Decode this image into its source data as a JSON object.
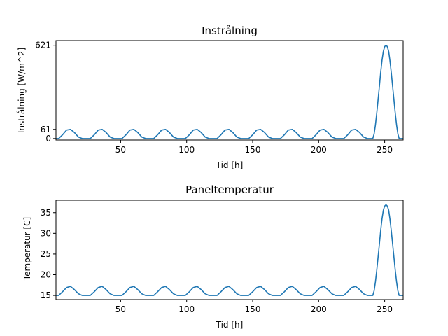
{
  "chart_data": [
    {
      "type": "line",
      "title": "Instrålning",
      "xlabel": "Tid [h]",
      "ylabel": "Instrålning [W/m^2]",
      "xlim": [
        1,
        264
      ],
      "ylim": [
        -10,
        652
      ],
      "xticks": [
        50,
        100,
        150,
        200,
        250
      ],
      "yticks": [
        0,
        61,
        621
      ],
      "grid": false,
      "series": [
        {
          "color": "#1f77b4",
          "x": [
            1,
            3,
            6,
            9,
            12,
            15,
            18,
            21,
            24,
            27,
            30,
            33,
            36,
            39,
            42,
            45,
            48,
            51,
            54,
            57,
            60,
            63,
            66,
            69,
            72,
            75,
            78,
            81,
            84,
            87,
            90,
            93,
            96,
            99,
            102,
            105,
            108,
            111,
            114,
            117,
            120,
            123,
            126,
            129,
            132,
            135,
            138,
            141,
            144,
            147,
            150,
            153,
            156,
            159,
            162,
            165,
            168,
            171,
            174,
            177,
            180,
            183,
            186,
            189,
            192,
            195,
            198,
            201,
            204,
            207,
            210,
            213,
            216,
            219,
            222,
            225,
            228,
            231,
            234,
            237,
            240,
            241,
            242,
            243,
            244,
            245,
            246,
            247,
            248,
            249,
            250,
            251,
            252,
            253,
            254,
            255,
            256,
            257,
            258,
            259,
            260,
            261,
            262,
            263,
            264
          ],
          "y": [
            0,
            0,
            25,
            56,
            61,
            40,
            10,
            0,
            0,
            0,
            25,
            56,
            61,
            40,
            10,
            0,
            0,
            0,
            25,
            56,
            61,
            40,
            10,
            0,
            0,
            0,
            25,
            56,
            61,
            40,
            10,
            0,
            0,
            0,
            25,
            56,
            61,
            40,
            10,
            0,
            0,
            0,
            25,
            56,
            61,
            40,
            10,
            0,
            0,
            0,
            25,
            56,
            61,
            40,
            10,
            0,
            0,
            0,
            25,
            56,
            61,
            40,
            10,
            0,
            0,
            0,
            25,
            56,
            61,
            40,
            10,
            0,
            0,
            0,
            25,
            56,
            61,
            40,
            10,
            0,
            0,
            0,
            30,
            90,
            170,
            260,
            350,
            440,
            520,
            580,
            612,
            621,
            612,
            580,
            520,
            440,
            350,
            260,
            170,
            90,
            30,
            0,
            0,
            0,
            0
          ]
        }
      ]
    },
    {
      "type": "line",
      "title": "Paneltemperatur",
      "xlabel": "Tid [h]",
      "ylabel": "Temperatur [C]",
      "xlim": [
        1,
        264
      ],
      "ylim": [
        14,
        38
      ],
      "xticks": [
        50,
        100,
        150,
        200,
        250
      ],
      "yticks": [
        15,
        20,
        25,
        30,
        35
      ],
      "grid": false,
      "series": [
        {
          "color": "#1f77b4",
          "x": [
            1,
            3,
            6,
            9,
            12,
            15,
            18,
            21,
            24,
            27,
            30,
            33,
            36,
            39,
            42,
            45,
            48,
            51,
            54,
            57,
            60,
            63,
            66,
            69,
            72,
            75,
            78,
            81,
            84,
            87,
            90,
            93,
            96,
            99,
            102,
            105,
            108,
            111,
            114,
            117,
            120,
            123,
            126,
            129,
            132,
            135,
            138,
            141,
            144,
            147,
            150,
            153,
            156,
            159,
            162,
            165,
            168,
            171,
            174,
            177,
            180,
            183,
            186,
            189,
            192,
            195,
            198,
            201,
            204,
            207,
            210,
            213,
            216,
            219,
            222,
            225,
            228,
            231,
            234,
            237,
            240,
            241,
            242,
            243,
            244,
            245,
            246,
            247,
            248,
            249,
            250,
            251,
            252,
            253,
            254,
            255,
            256,
            257,
            258,
            259,
            260,
            261,
            262,
            263,
            264
          ],
          "y": [
            15,
            15,
            15.9,
            16.9,
            17.2,
            16.4,
            15.4,
            15,
            15,
            15,
            15.9,
            16.9,
            17.2,
            16.4,
            15.4,
            15,
            15,
            15,
            15.9,
            16.9,
            17.2,
            16.4,
            15.4,
            15,
            15,
            15,
            15.9,
            16.9,
            17.2,
            16.4,
            15.4,
            15,
            15,
            15,
            15.9,
            16.9,
            17.2,
            16.4,
            15.4,
            15,
            15,
            15,
            15.9,
            16.9,
            17.2,
            16.4,
            15.4,
            15,
            15,
            15,
            15.9,
            16.9,
            17.2,
            16.4,
            15.4,
            15,
            15,
            15,
            15.9,
            16.9,
            17.2,
            16.4,
            15.4,
            15,
            15,
            15,
            15.9,
            16.9,
            17.2,
            16.4,
            15.4,
            15,
            15,
            15,
            15.9,
            16.9,
            17.2,
            16.4,
            15.4,
            15,
            15,
            15,
            16.1,
            18.3,
            21.1,
            24.3,
            27.5,
            30.7,
            33.5,
            35.6,
            36.6,
            36.9,
            36.6,
            35.6,
            33.5,
            30.7,
            27.5,
            24.3,
            21.1,
            18.3,
            16.1,
            15,
            15,
            15,
            15
          ]
        }
      ]
    }
  ]
}
